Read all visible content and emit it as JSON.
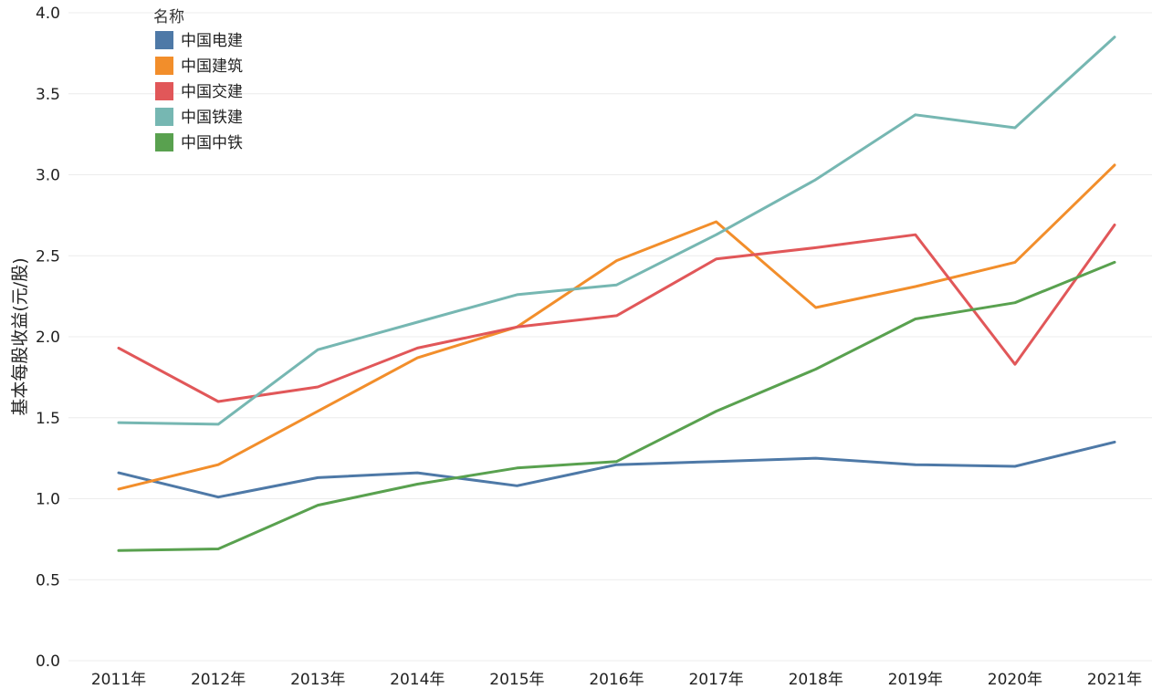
{
  "chart_data": {
    "type": "line",
    "title": "",
    "xlabel": "",
    "ylabel": "基本每股收益(元/股)",
    "ylim": [
      0,
      4
    ],
    "yticks": [
      "0.0",
      "0.5",
      "1.0",
      "1.5",
      "2.0",
      "2.5",
      "3.0",
      "3.5",
      "4.0"
    ],
    "grid": true,
    "legend_title": "名称",
    "legend_position": "top-left",
    "categories": [
      "2011年",
      "2012年",
      "2013年",
      "2014年",
      "2015年",
      "2016年",
      "2017年",
      "2018年",
      "2019年",
      "2020年",
      "2021年"
    ],
    "series": [
      {
        "name": "中国电建",
        "color": "#4e79a7",
        "values": [
          1.16,
          1.01,
          1.13,
          1.16,
          1.08,
          1.21,
          1.23,
          1.25,
          1.21,
          1.2,
          1.35
        ]
      },
      {
        "name": "中国建筑",
        "color": "#f28e2b",
        "values": [
          1.06,
          1.21,
          1.54,
          1.87,
          2.06,
          2.47,
          2.71,
          2.18,
          2.31,
          2.46,
          3.06
        ]
      },
      {
        "name": "中国交建",
        "color": "#e15759",
        "values": [
          1.93,
          1.6,
          1.69,
          1.93,
          2.06,
          2.13,
          2.48,
          2.55,
          2.63,
          1.83,
          2.69
        ]
      },
      {
        "name": "中国铁建",
        "color": "#76b7b2",
        "values": [
          1.47,
          1.46,
          1.92,
          2.09,
          2.26,
          2.32,
          2.63,
          2.97,
          3.37,
          3.29,
          3.85
        ]
      },
      {
        "name": "中国中铁",
        "color": "#59a14f",
        "values": [
          0.68,
          0.69,
          0.96,
          1.09,
          1.19,
          1.23,
          1.54,
          1.8,
          2.11,
          2.21,
          2.46
        ]
      }
    ]
  }
}
